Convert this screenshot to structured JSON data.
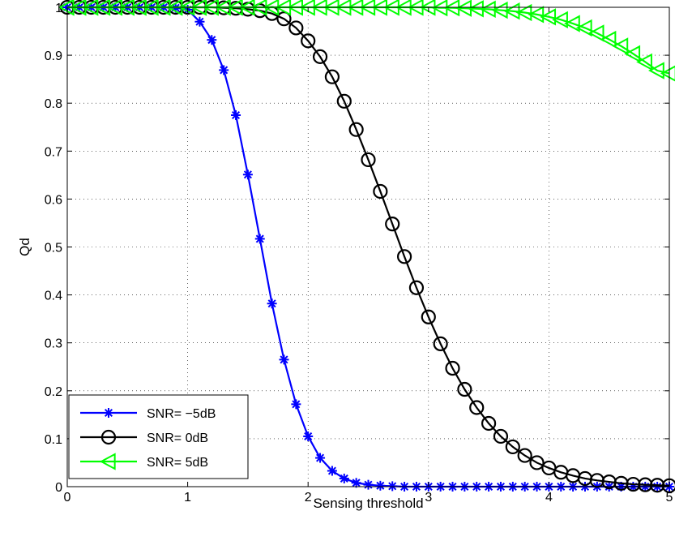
{
  "chart_data": {
    "type": "line",
    "title": "",
    "xlabel": "Sensing threshold",
    "ylabel": "Qd",
    "xlim": [
      0,
      5
    ],
    "ylim": [
      0,
      1
    ],
    "xticks": [
      "0",
      "1",
      "2",
      "3",
      "4",
      "5"
    ],
    "yticks": [
      "0",
      "0.1",
      "0.2",
      "0.3",
      "0.4",
      "0.5",
      "0.6",
      "0.7",
      "0.8",
      "0.9",
      "1"
    ],
    "grid": true,
    "legend_position": "bottom-left",
    "x": [
      0.0,
      0.1,
      0.2,
      0.3,
      0.4,
      0.5,
      0.6,
      0.7,
      0.8,
      0.9,
      1.0,
      1.1,
      1.2,
      1.3,
      1.4,
      1.5,
      1.6,
      1.7,
      1.8,
      1.9,
      2.0,
      2.1,
      2.2,
      2.3,
      2.4,
      2.5,
      2.6,
      2.7,
      2.8,
      2.9,
      3.0,
      3.1,
      3.2,
      3.3,
      3.4,
      3.5,
      3.6,
      3.7,
      3.8,
      3.9,
      4.0,
      4.1,
      4.2,
      4.3,
      4.4,
      4.5,
      4.6,
      4.7,
      4.8,
      4.9,
      5.0
    ],
    "series": [
      {
        "name": "SNR= −5dB",
        "color": "#0000ff",
        "marker": "asterisk",
        "values": [
          1.0,
          1.0,
          1.0,
          1.0,
          1.0,
          1.0,
          1.0,
          1.0,
          1.0,
          0.999,
          0.995,
          0.97,
          0.932,
          0.869,
          0.775,
          0.651,
          0.517,
          0.382,
          0.265,
          0.172,
          0.105,
          0.06,
          0.033,
          0.017,
          0.008,
          0.004,
          0.002,
          0.001,
          0.0,
          0.0,
          0.0,
          0.0,
          0.0,
          0.0,
          0.0,
          0.0,
          0.0,
          0.0,
          0.0,
          0.0,
          0.0,
          0.0,
          0.0,
          0.0,
          0.0,
          0.0,
          0.0,
          0.0,
          0.0,
          0.0,
          0.0
        ]
      },
      {
        "name": "SNR= 0dB",
        "color": "#000000",
        "marker": "circle",
        "values": [
          1.0,
          1.0,
          1.0,
          1.0,
          1.0,
          1.0,
          1.0,
          1.0,
          1.0,
          1.0,
          1.0,
          1.0,
          1.0,
          0.999,
          0.998,
          0.996,
          0.993,
          0.987,
          0.976,
          0.957,
          0.93,
          0.897,
          0.855,
          0.804,
          0.745,
          0.682,
          0.616,
          0.548,
          0.48,
          0.415,
          0.354,
          0.298,
          0.247,
          0.203,
          0.165,
          0.132,
          0.105,
          0.083,
          0.065,
          0.05,
          0.039,
          0.03,
          0.023,
          0.017,
          0.013,
          0.01,
          0.007,
          0.005,
          0.004,
          0.003,
          0.002
        ]
      },
      {
        "name": "SNR= 5dB",
        "color": "#00ff00",
        "marker": "triangle-left",
        "values": [
          1.0,
          1.0,
          1.0,
          1.0,
          1.0,
          1.0,
          1.0,
          1.0,
          1.0,
          1.0,
          1.0,
          1.0,
          1.0,
          1.0,
          1.0,
          1.0,
          1.0,
          1.0,
          1.0,
          1.0,
          1.0,
          1.0,
          1.0,
          1.0,
          1.0,
          1.0,
          1.0,
          1.0,
          1.0,
          1.0,
          1.0,
          0.999,
          0.999,
          0.998,
          0.997,
          0.996,
          0.994,
          0.992,
          0.989,
          0.985,
          0.98,
          0.974,
          0.966,
          0.957,
          0.946,
          0.933,
          0.919,
          0.903,
          0.886,
          0.868,
          0.862
        ]
      }
    ]
  }
}
